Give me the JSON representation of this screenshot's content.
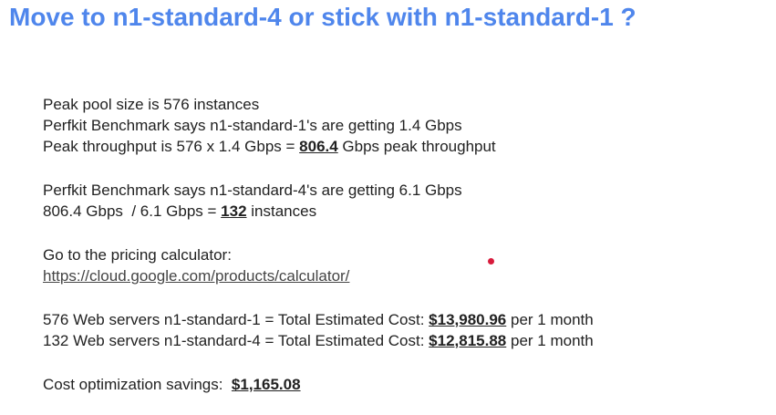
{
  "slide": {
    "title": "Move to n1-standard-4 or stick with n1-standard-1 ?",
    "block1": {
      "line1": "Peak pool size is 576 instances",
      "line2": "Perfkit Benchmark says n1-standard-1's are getting 1.4 Gbps",
      "line3_prefix": "Peak throughput is 576 x 1.4 Gbps = ",
      "line3_value": "806.4",
      "line3_suffix": " Gbps peak throughput"
    },
    "block2": {
      "line1": "Perfkit Benchmark says n1-standard-4's are getting 6.1 Gbps",
      "line2_prefix": "806.4 Gbps  / 6.1 Gbps = ",
      "line2_value": "132",
      "line2_suffix": " instances"
    },
    "block3": {
      "line1": "Go to the pricing calculator:",
      "link": "https://cloud.google.com/products/calculator/"
    },
    "block4": {
      "row1_prefix": "576 Web servers n1-standard-1 = Total Estimated Cost: ",
      "row1_value": "$13,980.96",
      "row1_suffix": " per 1 month",
      "row2_prefix": "132 Web servers n1-standard-4 = Total Estimated Cost: ",
      "row2_value": "$12,815.88",
      "row2_suffix": " per 1 month"
    },
    "block5": {
      "prefix": "Cost optimization savings:  ",
      "value": "$1,165.08"
    }
  },
  "colors": {
    "title": "#4f86ec",
    "text": "#222222",
    "pointer": "#d81b3c"
  }
}
